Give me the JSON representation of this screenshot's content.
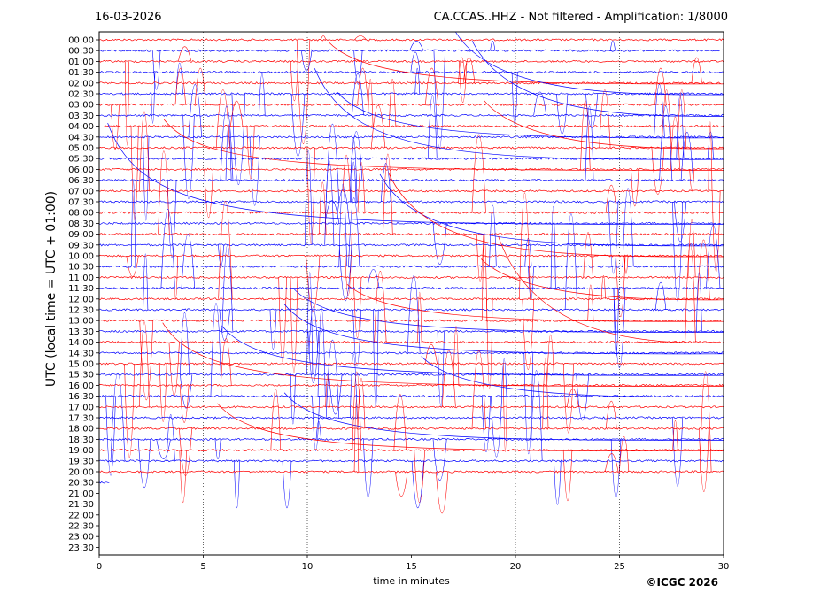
{
  "header": {
    "date": "16-03-2026",
    "station_title": "CA.CCAS..HHZ - Not filtered - Amplification: 1/8000"
  },
  "copyright": "©ICGC 2026",
  "colors": {
    "trace_a": "#ff0000",
    "trace_b": "#0000ff",
    "axis": "#000000",
    "grid": "#000000"
  },
  "chart_data": {
    "type": "line",
    "title": "CA.CCAS..HHZ - Not filtered - Amplification: 1/8000",
    "xlabel": "time in minutes",
    "ylabel": "UTC (local time = UTC + 01:00)",
    "xlim": [
      0,
      30
    ],
    "x_ticks": [
      "0",
      "5",
      "10",
      "15",
      "20",
      "25",
      "30"
    ],
    "vertical_gridlines_at_minutes": [
      5,
      10,
      20,
      25
    ],
    "y_tick_labels": [
      "00:00",
      "00:30",
      "01:00",
      "01:30",
      "02:00",
      "02:30",
      "03:00",
      "03:30",
      "04:00",
      "04:30",
      "05:00",
      "05:30",
      "06:00",
      "06:30",
      "07:00",
      "07:30",
      "08:00",
      "08:30",
      "09:00",
      "09:30",
      "10:00",
      "10:30",
      "11:00",
      "11:30",
      "12:00",
      "12:30",
      "13:00",
      "13:30",
      "14:00",
      "14:30",
      "15:00",
      "15:30",
      "16:00",
      "16:30",
      "17:00",
      "17:30",
      "18:00",
      "18:30",
      "19:00",
      "19:30",
      "20:00",
      "20:30",
      "21:00",
      "21:30",
      "22:00",
      "22:30",
      "23:00",
      "23:30"
    ],
    "trace_color_pattern": [
      "red",
      "blue"
    ],
    "last_trace_label": "20:30",
    "last_trace_end_minute": 0.5
  }
}
